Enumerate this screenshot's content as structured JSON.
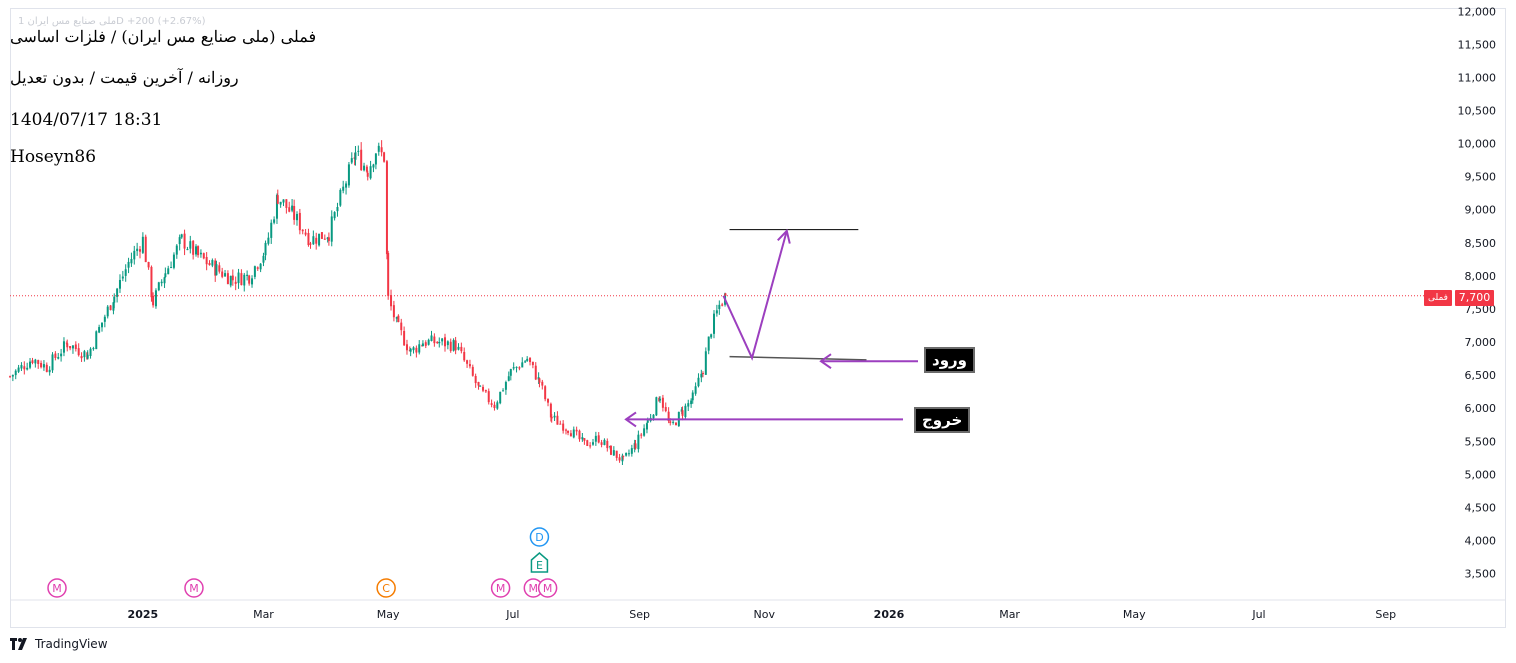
{
  "legend": {
    "title": "فملی (ملی صنایع مس ایران) / فلزات اساسی",
    "subtitle": "روزانه / آخرین قیمت / بدون تعدیل",
    "datetime": "1404/07/17 18:31",
    "author": "Hoseyn86",
    "faded_header": "ملی صنایع مس ایران 1D  +200 (+2.67%)"
  },
  "branding": {
    "name": "TradingView"
  },
  "last_price": {
    "value_label": "7,700",
    "ticker_label": "فملی",
    "value": 7700,
    "color": "#f23645"
  },
  "annotations": {
    "entry_label": "ورود",
    "exit_label": "خروج",
    "arrow_color": "#9c3fbf",
    "projection": [
      {
        "date": "2025-10-12",
        "price": 7700
      },
      {
        "date": "2025-10-26",
        "price": 6760
      },
      {
        "date": "2025-11-12",
        "price": 8680
      }
    ],
    "target_line": {
      "from": "2025-10-15",
      "to": "2025-12-17",
      "price": 8700
    },
    "entry_line": {
      "from": "2025-10-15",
      "to": "2025-12-21",
      "start_price": 6780,
      "end_price": 6730
    },
    "exit_level": 5830
  },
  "events": [
    {
      "date": "2024-11-20",
      "letter": "M",
      "color": "#e040b0"
    },
    {
      "date": "2025-01-26",
      "letter": "M",
      "color": "#e040b0"
    },
    {
      "date": "2025-04-30",
      "letter": "C",
      "color": "#f57c00"
    },
    {
      "date": "2025-06-25",
      "letter": "M",
      "color": "#e040b0"
    },
    {
      "date": "2025-07-11",
      "letter": "M",
      "color": "#e040b0"
    },
    {
      "date": "2025-07-18",
      "letter": "M",
      "color": "#e040b0"
    },
    {
      "date": "2025-07-14",
      "letter": "E",
      "color": "#089981",
      "shape": "house"
    },
    {
      "date": "2025-07-14",
      "letter": "D",
      "color": "#2196f3"
    }
  ],
  "chart_data": {
    "type": "candlestick",
    "x_axis": {
      "range": [
        "2024-10-28",
        "2026-09-30"
      ],
      "ticks": [
        {
          "date": "2025-01-01",
          "label": "2025",
          "bold": true
        },
        {
          "date": "2025-03-01",
          "label": "Mar"
        },
        {
          "date": "2025-05-01",
          "label": "May"
        },
        {
          "date": "2025-07-01",
          "label": "Jul"
        },
        {
          "date": "2025-09-01",
          "label": "Sep"
        },
        {
          "date": "2025-11-01",
          "label": "Nov"
        },
        {
          "date": "2026-01-01",
          "label": "2026",
          "bold": true
        },
        {
          "date": "2026-03-01",
          "label": "Mar"
        },
        {
          "date": "2026-05-01",
          "label": "May"
        },
        {
          "date": "2026-07-01",
          "label": "Jul"
        },
        {
          "date": "2026-09-01",
          "label": "Sep"
        }
      ]
    },
    "y_axis": {
      "range": [
        3100,
        12050
      ],
      "ticks": [
        {
          "value": 3500,
          "label": "3,500"
        },
        {
          "value": 4000,
          "label": "4,000"
        },
        {
          "value": 4500,
          "label": "4,500"
        },
        {
          "value": 5000,
          "label": "5,000"
        },
        {
          "value": 5500,
          "label": "5,500"
        },
        {
          "value": 6000,
          "label": "6,000"
        },
        {
          "value": 6500,
          "label": "6,500"
        },
        {
          "value": 7000,
          "label": "7,000"
        },
        {
          "value": 7500,
          "label": "7,500"
        },
        {
          "value": 8000,
          "label": "8,000"
        },
        {
          "value": 8500,
          "label": "8,500"
        },
        {
          "value": 9000,
          "label": "9,000"
        },
        {
          "value": 9500,
          "label": "9,500"
        },
        {
          "value": 10000,
          "label": "10,000"
        },
        {
          "value": 10500,
          "label": "10,500"
        },
        {
          "value": 11000,
          "label": "11,000"
        },
        {
          "value": 11500,
          "label": "11,500"
        },
        {
          "value": 12000,
          "label": "12,000"
        }
      ]
    },
    "up_color": "#089981",
    "down_color": "#f23645",
    "close_path": [
      {
        "date": "2024-10-28",
        "close": 6480
      },
      {
        "date": "2024-11-08",
        "close": 6750
      },
      {
        "date": "2024-11-15",
        "close": 6620
      },
      {
        "date": "2024-11-25",
        "close": 6980
      },
      {
        "date": "2024-12-05",
        "close": 6800
      },
      {
        "date": "2024-12-12",
        "close": 7300
      },
      {
        "date": "2024-12-18",
        "close": 7700
      },
      {
        "date": "2024-12-25",
        "close": 8200
      },
      {
        "date": "2025-01-01",
        "close": 8550
      },
      {
        "date": "2025-01-06",
        "close": 7600
      },
      {
        "date": "2025-01-12",
        "close": 8050
      },
      {
        "date": "2025-01-20",
        "close": 8550
      },
      {
        "date": "2025-01-28",
        "close": 8300
      },
      {
        "date": "2025-02-06",
        "close": 8100
      },
      {
        "date": "2025-02-14",
        "close": 7950
      },
      {
        "date": "2025-02-22",
        "close": 8000
      },
      {
        "date": "2025-03-02",
        "close": 8400
      },
      {
        "date": "2025-03-08",
        "close": 9200
      },
      {
        "date": "2025-03-16",
        "close": 8900
      },
      {
        "date": "2025-03-24",
        "close": 8550
      },
      {
        "date": "2025-04-02",
        "close": 8650
      },
      {
        "date": "2025-04-09",
        "close": 9300
      },
      {
        "date": "2025-04-15",
        "close": 9850
      },
      {
        "date": "2025-04-21",
        "close": 9600
      },
      {
        "date": "2025-04-25",
        "close": 9900
      },
      {
        "date": "2025-04-29",
        "close": 9800
      },
      {
        "date": "2025-05-01",
        "close": 7650
      },
      {
        "date": "2025-05-06",
        "close": 7200
      },
      {
        "date": "2025-05-12",
        "close": 6850
      },
      {
        "date": "2025-05-18",
        "close": 7000
      },
      {
        "date": "2025-05-26",
        "close": 7000
      },
      {
        "date": "2025-06-03",
        "close": 6950
      },
      {
        "date": "2025-06-10",
        "close": 6550
      },
      {
        "date": "2025-06-15",
        "close": 6250
      },
      {
        "date": "2025-06-22",
        "close": 6050
      },
      {
        "date": "2025-06-30",
        "close": 6550
      },
      {
        "date": "2025-07-08",
        "close": 6750
      },
      {
        "date": "2025-07-14",
        "close": 6400
      },
      {
        "date": "2025-07-20",
        "close": 5850
      },
      {
        "date": "2025-07-28",
        "close": 5700
      },
      {
        "date": "2025-08-05",
        "close": 5450
      },
      {
        "date": "2025-08-12",
        "close": 5550
      },
      {
        "date": "2025-08-18",
        "close": 5350
      },
      {
        "date": "2025-08-24",
        "close": 5200
      },
      {
        "date": "2025-08-30",
        "close": 5450
      },
      {
        "date": "2025-09-05",
        "close": 5800
      },
      {
        "date": "2025-09-11",
        "close": 6200
      },
      {
        "date": "2025-09-16",
        "close": 5700
      },
      {
        "date": "2025-09-22",
        "close": 5950
      },
      {
        "date": "2025-09-27",
        "close": 6150
      },
      {
        "date": "2025-10-02",
        "close": 6600
      },
      {
        "date": "2025-10-06",
        "close": 7200
      },
      {
        "date": "2025-10-10",
        "close": 7550
      },
      {
        "date": "2025-10-13",
        "close": 7700
      }
    ]
  }
}
